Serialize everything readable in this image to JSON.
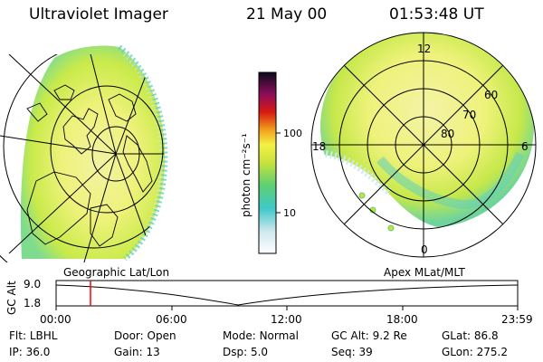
{
  "header": {
    "instrument": "Ultraviolet Imager",
    "date": "21 May 00",
    "time": "01:53:48 UT"
  },
  "colorbar": {
    "unit_label": "photon cm⁻²s⁻¹",
    "ticks": [
      "100",
      "10"
    ],
    "scale": "log"
  },
  "polar_plot": {
    "lat_labels": [
      "60",
      "70",
      "80"
    ],
    "mlt_labels": [
      "12",
      "18",
      "6",
      "0"
    ]
  },
  "projection_labels": {
    "left": "Geographic Lat/Lon",
    "right": "Apex MLat/MLT"
  },
  "altitude_plot": {
    "axis_title": "GC Alt",
    "y_ticks": [
      "9.0",
      "1.8"
    ],
    "x_ticks": [
      "00:00",
      "06:00",
      "12:00",
      "18:00",
      "23:59"
    ],
    "cursor_color": "#ff0000"
  },
  "info": {
    "row1": [
      {
        "key": "Flt:",
        "value": "LBHL"
      },
      {
        "key": "Door:",
        "value": "Open"
      },
      {
        "key": "Mode:",
        "value": "Normal"
      },
      {
        "key": "GC Alt:",
        "value": "9.2 Re"
      },
      {
        "key": "GLat:",
        "value": "86.8"
      }
    ],
    "row2": [
      {
        "key": "IP:",
        "value": "36.0"
      },
      {
        "key": "Gain:",
        "value": "13"
      },
      {
        "key": "Dsp:",
        "value": "5.0"
      },
      {
        "key": "Seq:",
        "value": "39"
      },
      {
        "key": "GLon:",
        "value": "275.2"
      }
    ]
  }
}
